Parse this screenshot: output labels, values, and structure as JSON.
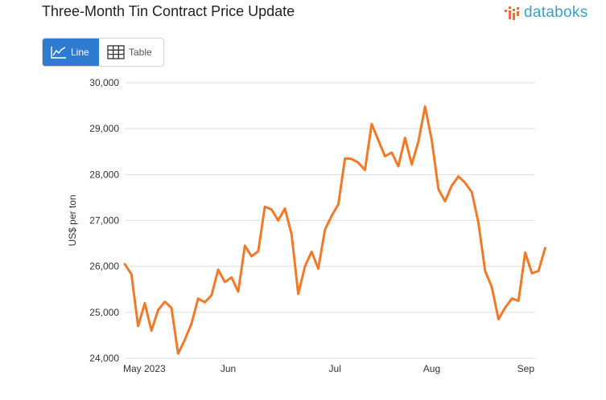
{
  "header": {
    "title": "Three-Month Tin Contract Price Update",
    "brand": "databoks"
  },
  "view_toggle": {
    "line_label": "Line",
    "table_label": "Table",
    "selected": "Line"
  },
  "colors": {
    "line": "#f07a2a",
    "toggle_active": "#2f7bd1",
    "brand": "#3aa0c8",
    "grid": "#dedede"
  },
  "chart_data": {
    "type": "line",
    "title": "Three-Month Tin Contract Price Update",
    "xlabel": "",
    "ylabel": "US$ per ton",
    "ylim": [
      24000,
      30000
    ],
    "yticks": [
      24000,
      25000,
      26000,
      27000,
      28000,
      29000,
      30000
    ],
    "ytick_labels": [
      "24,000",
      "25,000",
      "26,000",
      "27,000",
      "28,000",
      "29,000",
      "30,000"
    ],
    "xticks": [
      {
        "date": "2023-05-01",
        "label": "May 2023"
      },
      {
        "date": "2023-06-01",
        "label": "Jun"
      },
      {
        "date": "2023-07-03",
        "label": "Jul"
      },
      {
        "date": "2023-08-01",
        "label": "Aug"
      },
      {
        "date": "2023-09-01",
        "label": "Sep"
      }
    ],
    "xlim": [
      "2023-05-01",
      "2023-09-01"
    ],
    "grid": true,
    "series": [
      {
        "x": [
          "2023-05-01",
          "2023-05-03",
          "2023-05-05",
          "2023-05-07",
          "2023-05-09",
          "2023-05-11",
          "2023-05-13",
          "2023-05-15",
          "2023-05-17",
          "2023-05-19",
          "2023-05-21",
          "2023-05-23",
          "2023-05-25",
          "2023-05-27",
          "2023-05-29",
          "2023-05-31",
          "2023-06-02",
          "2023-06-04",
          "2023-06-06",
          "2023-06-08",
          "2023-06-10",
          "2023-06-12",
          "2023-06-14",
          "2023-06-16",
          "2023-06-18",
          "2023-06-20",
          "2023-06-22",
          "2023-06-24",
          "2023-06-26",
          "2023-06-28",
          "2023-06-30",
          "2023-07-02",
          "2023-07-04",
          "2023-07-06",
          "2023-07-08",
          "2023-07-10",
          "2023-07-12",
          "2023-07-14",
          "2023-07-16",
          "2023-07-18",
          "2023-07-20",
          "2023-07-22",
          "2023-07-24",
          "2023-07-26",
          "2023-07-28",
          "2023-07-30",
          "2023-08-01",
          "2023-08-03",
          "2023-08-05",
          "2023-08-07",
          "2023-08-09",
          "2023-08-11",
          "2023-08-13",
          "2023-08-15",
          "2023-08-17",
          "2023-08-19",
          "2023-08-21",
          "2023-08-23",
          "2023-08-25",
          "2023-08-27",
          "2023-08-29",
          "2023-08-31",
          "2023-09-02",
          "2023-09-04"
        ],
        "y": [
          26050,
          25830,
          24700,
          25200,
          24600,
          25050,
          25230,
          25100,
          24100,
          24400,
          24750,
          25300,
          25220,
          25370,
          25930,
          25660,
          25760,
          25450,
          26450,
          26220,
          26330,
          27300,
          27240,
          27000,
          27260,
          26700,
          25400,
          26000,
          26320,
          25950,
          26800,
          27100,
          27350,
          28350,
          28340,
          28260,
          28100,
          29100,
          28750,
          28400,
          28480,
          28180,
          28800,
          28220,
          28720,
          29480,
          28750,
          27680,
          27420,
          27760,
          27960,
          27820,
          27620,
          26950,
          25900,
          25550,
          24850,
          25100,
          25300,
          25250,
          26300,
          25850,
          25900,
          26400
        ]
      }
    ]
  }
}
